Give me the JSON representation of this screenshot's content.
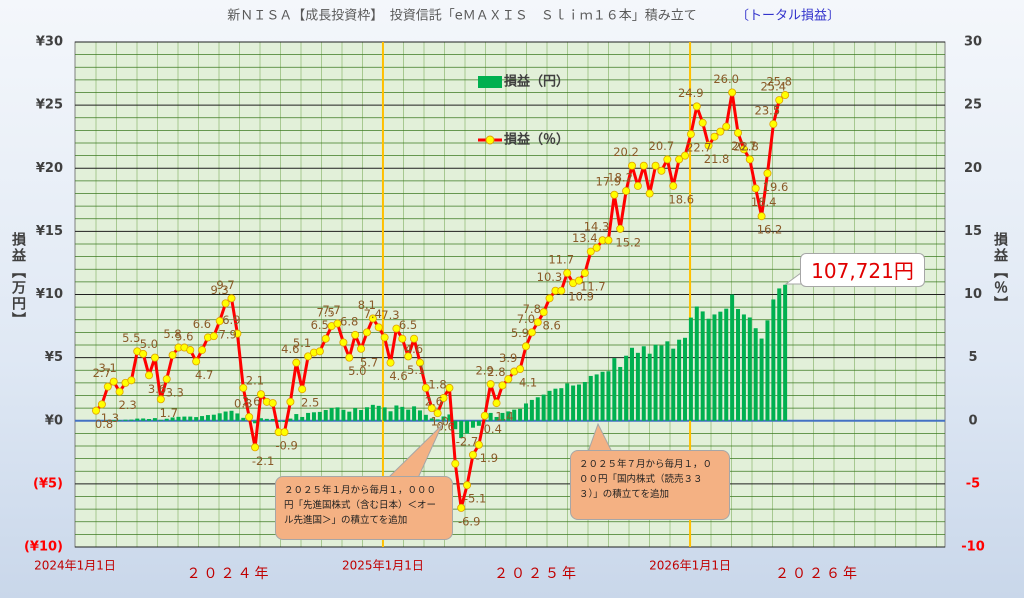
{
  "chart_data": {
    "type": "bar_line",
    "title": "新ＮＩＳＡ【成長投資枠】　投資信託「eＭＡＸＩＳ　Ｓｌｉｍ１６本」積み立て",
    "subtitle": "〔トータル損益〕",
    "ylabel": "損益【万円】",
    "y2label": "損益【％】",
    "x": [
      "2024-01-26",
      "2024-02-02",
      "2024-02-09",
      "2024-02-16",
      "2024-02-23",
      "2024-03-01",
      "2024-03-08",
      "2024-03-15",
      "2024-03-22",
      "2024-03-29",
      "2024-04-05",
      "2024-04-12",
      "2024-04-19",
      "2024-04-26",
      "2024-05-03",
      "2024-05-10",
      "2024-05-17",
      "2024-05-24",
      "2024-05-31",
      "2024-06-07",
      "2024-06-14",
      "2024-06-21",
      "2024-06-28",
      "2024-07-05",
      "2024-07-12",
      "2024-07-19",
      "2024-07-26",
      "2024-08-02",
      "2024-08-09",
      "2024-08-16",
      "2024-08-23",
      "2024-08-30",
      "2024-09-06",
      "2024-09-13",
      "2024-09-20",
      "2024-09-27",
      "2024-10-04",
      "2024-10-11",
      "2024-10-18",
      "2024-10-25",
      "2024-11-01",
      "2024-11-08",
      "2024-11-15",
      "2024-11-22",
      "2024-11-29",
      "2024-12-06",
      "2024-12-13",
      "2024-12-20",
      "2024-12-27",
      "2025-01-03",
      "2025-01-10",
      "2025-01-17",
      "2025-01-24",
      "2025-01-31",
      "2025-02-07",
      "2025-02-14",
      "2025-02-21",
      "2025-02-28",
      "2025-03-07",
      "2025-03-14",
      "2025-03-21",
      "2025-03-28",
      "2025-04-04",
      "2025-04-11",
      "2025-04-18",
      "2025-04-25",
      "2025-05-02",
      "2025-05-09",
      "2025-05-16",
      "2025-05-23",
      "2025-05-30",
      "2025-06-06",
      "2025-06-13",
      "2025-06-20",
      "2025-06-27",
      "2025-07-04",
      "2025-07-11",
      "2025-07-18",
      "2025-07-25",
      "2025-08-01",
      "2025-08-08",
      "2025-08-15",
      "2025-08-22",
      "2025-08-29",
      "2025-09-05",
      "2025-09-12",
      "2025-09-19",
      "2025-09-26",
      "2025-10-03",
      "2025-10-10",
      "2025-10-17",
      "2025-10-24",
      "2025-10-31",
      "2025-11-07",
      "2025-11-14",
      "2025-11-21",
      "2025-11-28",
      "2025-12-05",
      "2025-12-12",
      "2025-12-19",
      "2025-12-26",
      "2026-01-02",
      "2026-01-09",
      "2026-01-16",
      "2026-01-23",
      "2026-01-30",
      "2026-02-06",
      "2026-02-13",
      "2026-02-20",
      "2026-02-27",
      "2026-03-06",
      "2026-03-13",
      "2026-03-20",
      "2026-03-27",
      "2026-04-03",
      "2026-04-10",
      "2026-04-17",
      "2026-04-24"
    ],
    "xlim": [
      "2024-01-01",
      "2026-10-31"
    ],
    "xticks": [
      {
        "value": "2024-01-01",
        "label": "2024年1月1日"
      },
      {
        "value": "2025-01-01",
        "label": "2025年1月1日"
      },
      {
        "value": "2026-01-01",
        "label": "2026年1月1日"
      }
    ],
    "x_period_labels": [
      "２０２４年",
      "２０２５年",
      "２０２６年"
    ],
    "ylim": [
      -10,
      30
    ],
    "yticks": [
      {
        "value": 30,
        "label": "¥30"
      },
      {
        "value": 25,
        "label": "¥25"
      },
      {
        "value": 20,
        "label": "¥20"
      },
      {
        "value": 15,
        "label": "¥15"
      },
      {
        "value": 10,
        "label": "¥10"
      },
      {
        "value": 5,
        "label": "¥5"
      },
      {
        "value": 0,
        "label": "¥0"
      },
      {
        "value": -5,
        "label": "(¥5)"
      },
      {
        "value": -10,
        "label": "(¥10)"
      }
    ],
    "y2lim": [
      -10,
      30
    ],
    "y2ticks": [
      30,
      25,
      20,
      15,
      10,
      5,
      0,
      -5,
      -10
    ],
    "y_minor_ticks": [
      -9,
      -8,
      -7,
      -6,
      -4,
      -3,
      -2,
      -1,
      1,
      2,
      3,
      4,
      6,
      7,
      8,
      9,
      11,
      12,
      13,
      14,
      16,
      17,
      18,
      19,
      21,
      22,
      23,
      24,
      26,
      27,
      28,
      29
    ],
    "negative_label_color": "#ff0000",
    "grid": true,
    "series": [
      {
        "name": "損益（円）",
        "color": "#00b050",
        "axis": "y",
        "values": [
          0.01,
          0.01,
          0.04,
          0.06,
          0.05,
          0.08,
          0.09,
          0.17,
          0.18,
          0.14,
          0.21,
          0.07,
          0.16,
          0.26,
          0.31,
          0.33,
          0.33,
          0.29,
          0.37,
          0.45,
          0.48,
          0.59,
          0.73,
          0.79,
          0.58,
          0.23,
          0.03,
          -0.2,
          0.2,
          0.15,
          0.14,
          -0.1,
          -0.1,
          0.17,
          0.53,
          0.3,
          0.62,
          0.67,
          0.7,
          0.85,
          1.01,
          1.06,
          0.87,
          0.72,
          1.0,
          0.85,
          1.07,
          1.26,
          1.18,
          1.06,
          0.75,
          1.21,
          1.1,
          0.88,
          1.14,
          0.82,
          0.47,
          0.18,
          0.11,
          0.34,
          0.5,
          -0.67,
          -1.37,
          -1.03,
          -0.55,
          -0.4,
          0.08,
          0.62,
          0.3,
          0.62,
          0.74,
          0.88,
          0.94,
          1.37,
          1.65,
          1.86,
          2.07,
          2.37,
          2.54,
          2.58,
          2.96,
          2.79,
          2.87,
          3.07,
          3.55,
          3.67,
          3.88,
          3.92,
          4.96,
          4.26,
          5.15,
          5.78,
          5.38,
          5.9,
          5.31,
          6.02,
          5.96,
          6.29,
          5.71,
          6.42,
          6.57,
          8.17,
          9.05,
          8.66,
          8.08,
          8.42,
          8.64,
          8.88,
          10.0,
          8.85,
          8.42,
          8.18,
          7.33,
          6.51,
          7.95,
          9.61,
          10.48,
          10.77
        ]
      },
      {
        "name": "損益（％）",
        "color": "#ff0000",
        "marker_color": "#ffff00",
        "axis": "y2",
        "values": [
          0.8,
          1.3,
          2.7,
          3.1,
          2.3,
          3.0,
          3.2,
          5.5,
          5.3,
          3.6,
          5.0,
          1.7,
          3.3,
          5.2,
          5.8,
          5.8,
          5.6,
          4.7,
          5.6,
          6.6,
          6.7,
          7.9,
          9.3,
          9.7,
          6.9,
          2.6,
          0.3,
          -2.1,
          2.1,
          1.5,
          1.4,
          -0.9,
          -0.9,
          1.5,
          4.6,
          2.5,
          5.1,
          5.4,
          5.5,
          6.5,
          7.5,
          7.7,
          6.2,
          5.0,
          6.8,
          5.7,
          7.0,
          8.1,
          7.4,
          6.6,
          4.6,
          7.3,
          6.5,
          5.1,
          6.5,
          4.6,
          2.6,
          1.0,
          0.6,
          1.8,
          2.6,
          -3.4,
          -6.9,
          -5.1,
          -2.7,
          -1.9,
          0.4,
          2.9,
          1.4,
          2.8,
          3.3,
          3.9,
          4.1,
          5.9,
          7.0,
          7.8,
          8.6,
          9.7,
          10.3,
          10.3,
          11.7,
          10.9,
          11.1,
          11.7,
          13.4,
          13.7,
          14.3,
          14.3,
          17.9,
          15.2,
          18.2,
          20.2,
          18.6,
          20.2,
          18.0,
          20.2,
          19.8,
          20.7,
          18.6,
          20.7,
          21.0,
          22.7,
          24.9,
          23.6,
          21.8,
          22.5,
          22.9,
          23.3,
          26.0,
          22.8,
          21.5,
          20.7,
          18.4,
          16.2,
          19.6,
          23.5,
          25.4,
          25.8
        ],
        "value_labels": [
          "0.8",
          "1.3",
          "2.7",
          "3.1",
          "2.3",
          null,
          null,
          "5.5",
          null,
          "3.6",
          "5.0",
          "1.7",
          "3.3",
          null,
          "5.8",
          null,
          "5.6",
          "4.7",
          null,
          "6.6",
          null,
          "7.9",
          "9.3",
          "9.7",
          "6.9",
          "2.6",
          "0.3",
          "-2.1",
          "2.1",
          null,
          null,
          "-0.9",
          null,
          null,
          "4.6",
          "2.5",
          "5.1",
          null,
          null,
          "6.5",
          "7.5",
          "7.7",
          null,
          "5.0",
          "6.8",
          "5.7",
          null,
          "8.1",
          "7.4",
          null,
          "4.6",
          "7.3",
          null,
          "5.1",
          "6.5",
          "4.6",
          "2.6",
          "1.0",
          "0.6",
          "1.8",
          null,
          null,
          "-6.9",
          "-5.1",
          "-2.7",
          "-1.9",
          "0.4",
          "2.9",
          "1.4",
          "2.8",
          null,
          "3.9",
          "4.1",
          "5.9",
          "7.0",
          "7.8",
          "8.6",
          null,
          "10.3",
          null,
          "11.7",
          "10.9",
          null,
          "11.7",
          "13.4",
          null,
          "14.3",
          null,
          "17.9",
          "15.2",
          "18.2",
          "20.2",
          null,
          null,
          null,
          null,
          null,
          "20.7",
          "18.6",
          null,
          null,
          "22.7",
          "24.9",
          null,
          "21.8",
          null,
          null,
          null,
          "26.0",
          "22.8",
          null,
          "20.7",
          "18.4",
          "16.2",
          "19.6",
          "23.5",
          "25.4",
          "25.8"
        ]
      }
    ],
    "legend": "inside-top-center",
    "total_label": "107,721円",
    "annotations": [
      "２０２５年１月から毎月１，０００円「先進国株式（含む日本）＜オール先進国＞」の積立てを追加",
      "２０２５年７月から毎月１，０００円「国内株式（読売３３３）」の積立てを追加"
    ]
  }
}
